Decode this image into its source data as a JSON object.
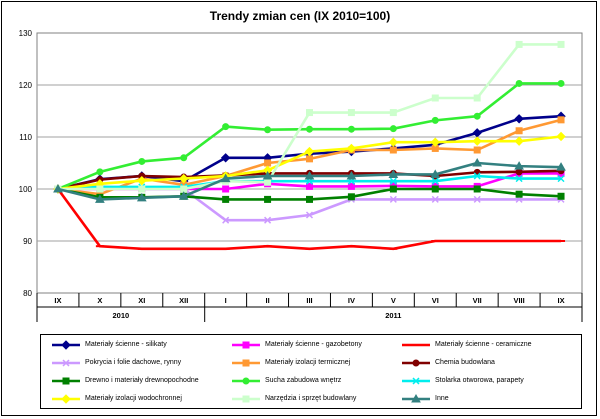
{
  "chart_data": {
    "type": "line",
    "title": "Trendy zmian cen (IX 2010=100)",
    "categories": [
      "IX",
      "X",
      "XI",
      "XII",
      "I",
      "II",
      "III",
      "IV",
      "V",
      "VI",
      "VII",
      "VIII",
      "IX"
    ],
    "year_groups": [
      {
        "label": "2010",
        "from": 0,
        "to": 3
      },
      {
        "label": "2011",
        "from": 4,
        "to": 12
      }
    ],
    "ylim": [
      80,
      130
    ],
    "yticks": [
      80,
      90,
      100,
      110,
      120,
      130
    ],
    "grid": true,
    "series": [
      {
        "name": "Materiały ścienne - silikaty",
        "color": "#00008B",
        "marker": "diamond",
        "values": [
          100,
          101.9,
          102.5,
          101.5,
          106,
          106,
          106.8,
          107.2,
          107.8,
          108.5,
          110.8,
          113.5,
          114
        ]
      },
      {
        "name": "Materiały ścienne - gazobetony",
        "color": "#FF00FF",
        "marker": "square",
        "values": [
          100,
          100,
          100,
          100,
          100,
          101,
          100.5,
          100.5,
          100.6,
          100.5,
          100.5,
          103,
          103
        ]
      },
      {
        "name": "Materiały ścienne - ceramiczne",
        "color": "#FF0000",
        "marker": "dash",
        "values": [
          100,
          89,
          88.5,
          88.5,
          88.5,
          89,
          88.5,
          89,
          88.5,
          90,
          90,
          90,
          90
        ]
      },
      {
        "name": "Pokrycia i folie dachowe, rynny",
        "color": "#CC99FF",
        "marker": "x",
        "values": [
          100,
          100.5,
          100,
          100,
          94,
          94,
          95,
          98,
          98,
          98,
          98,
          98,
          98
        ]
      },
      {
        "name": "Materiały izolacji termicznej",
        "color": "#FF9933",
        "marker": "square",
        "values": [
          100,
          99,
          102,
          100.8,
          102.5,
          105,
          105.8,
          107.5,
          107.5,
          107.8,
          107.5,
          111.2,
          113.3
        ]
      },
      {
        "name": "Chemia budowlana",
        "color": "#800000",
        "marker": "circle",
        "values": [
          100,
          101.8,
          102.5,
          102.3,
          102.6,
          103,
          103,
          103,
          103,
          102.5,
          103.2,
          103.3,
          103.5
        ]
      },
      {
        "name": "Drewno i materiały drewnopochodne",
        "color": "#008000",
        "marker": "square",
        "values": [
          100,
          98.4,
          98.4,
          98.6,
          98,
          98,
          98,
          98.5,
          100,
          100,
          100,
          99,
          98.6
        ]
      },
      {
        "name": "Sucha zabudowa wnętrz",
        "color": "#33EE33",
        "marker": "circle",
        "values": [
          100,
          103.3,
          105.3,
          106,
          112,
          111.4,
          111.5,
          111.5,
          111.6,
          113.2,
          114,
          120.3,
          120.3
        ]
      },
      {
        "name": "Stolarka otworowa, parapety",
        "color": "#00EEEE",
        "marker": "x",
        "values": [
          100,
          100.4,
          100.4,
          100.4,
          101.5,
          101.5,
          101.5,
          101.5,
          101.5,
          101.5,
          102.5,
          102,
          102
        ]
      },
      {
        "name": "Materiały izolacji wodochronnej",
        "color": "#FFFF00",
        "marker": "diamond",
        "values": [
          100,
          101,
          101.6,
          102,
          102.5,
          103.6,
          107.2,
          107.8,
          109,
          109,
          109.2,
          109.2,
          110.1
        ]
      },
      {
        "name": "Narzędzia i sprzęt budowlany",
        "color": "#CCFFCC",
        "marker": "square",
        "values": [
          100,
          100,
          100,
          100,
          101.5,
          101.3,
          114.7,
          114.7,
          114.7,
          117.5,
          117.5,
          127.8,
          127.8
        ]
      },
      {
        "name": "Inne",
        "color": "#338080",
        "marker": "triangle",
        "values": [
          100,
          98,
          98.3,
          98.6,
          102,
          102.5,
          102.5,
          102.5,
          102.8,
          102.8,
          105,
          104.4,
          104.2
        ]
      }
    ]
  }
}
